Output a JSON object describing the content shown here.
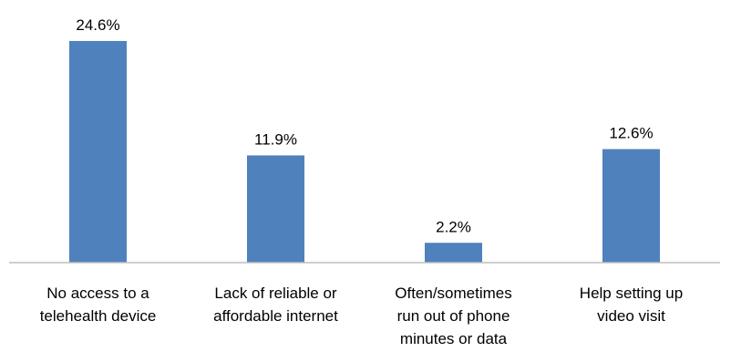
{
  "chart_data": {
    "type": "bar",
    "categories": [
      [
        "No access to a",
        "telehealth device"
      ],
      [
        "Lack of reliable or",
        "affordable internet"
      ],
      [
        "Often/sometimes",
        "run out of phone",
        "minutes or data"
      ],
      [
        "Help setting up",
        "video visit"
      ]
    ],
    "values": [
      24.6,
      11.9,
      2.2,
      12.6
    ],
    "data_labels": [
      "24.6%",
      "11.9%",
      "2.2%",
      "12.6%"
    ],
    "ylim": [
      0,
      25
    ],
    "grid": false,
    "legend": "none",
    "bar_color": "#4f81bd",
    "axis_color": "#bfbfbf"
  }
}
